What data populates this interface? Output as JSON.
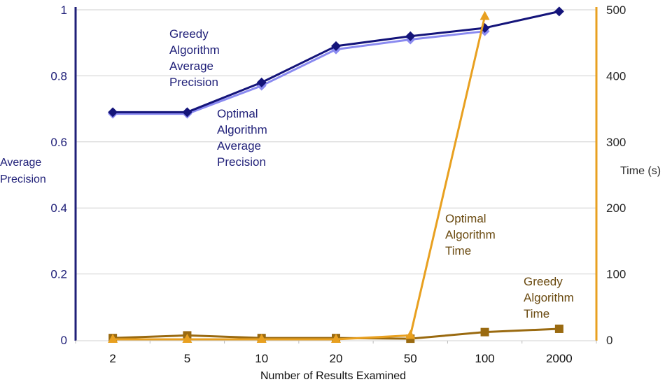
{
  "chart_data": {
    "type": "line",
    "xlabel": "Number of Results Examined",
    "ylabel_left": [
      "Average",
      "Precision"
    ],
    "ylabel_right": "Time (s)",
    "categories": [
      "2",
      "5",
      "10",
      "20",
      "50",
      "100",
      "2000"
    ],
    "y_left": {
      "range": [
        0,
        1
      ],
      "ticks": [
        "0",
        "0.2",
        "0.4",
        "0.6",
        "0.8",
        "1"
      ]
    },
    "y_right": {
      "range": [
        0,
        500
      ],
      "ticks": [
        "0",
        "100",
        "200",
        "300",
        "400",
        "500"
      ]
    },
    "grid": "horizontal",
    "series": [
      {
        "key": "greedy_precision",
        "axis": "left",
        "marker": "diamond",
        "color": "#14147a",
        "values": [
          0.69,
          0.69,
          0.78,
          0.89,
          0.92,
          0.945,
          0.995
        ],
        "annotation": [
          "Greedy",
          "Algorithm",
          "Average",
          "Precision"
        ]
      },
      {
        "key": "optimal_precision",
        "axis": "left",
        "marker": "diamond",
        "color": "#8a8af0",
        "values": [
          0.685,
          0.685,
          0.77,
          0.88,
          0.91,
          0.935,
          null
        ],
        "annotation": [
          "Optimal",
          "Algorithm",
          "Average",
          "Precision"
        ]
      },
      {
        "key": "optimal_time",
        "axis": "right",
        "marker": "triangle",
        "color": "#e8a020",
        "values": [
          1,
          1,
          1,
          1,
          7,
          490,
          null
        ],
        "annotation": [
          "Optimal",
          "Algorithm",
          "Time"
        ]
      },
      {
        "key": "greedy_time",
        "axis": "right",
        "marker": "square",
        "color": "#9a6a10",
        "values": [
          3,
          7,
          3,
          3,
          2,
          12,
          17
        ],
        "annotation": [
          "Greedy",
          "Algorithm",
          "Time"
        ]
      }
    ]
  }
}
